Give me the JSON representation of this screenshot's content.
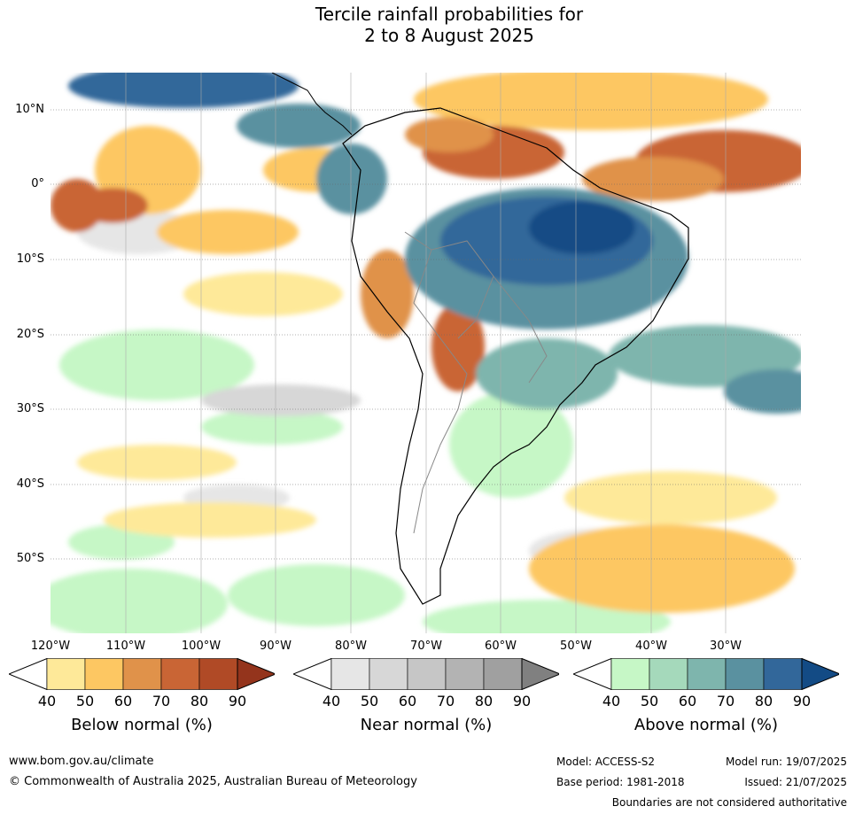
{
  "title_line1": "Tercile rainfall probabilities for",
  "title_line2": "2 to 8 August 2025",
  "lat_labels": [
    "10°N",
    "0°",
    "10°S",
    "20°S",
    "30°S",
    "40°S",
    "50°S"
  ],
  "lon_labels": [
    "120°W",
    "110°W",
    "100°W",
    "90°W",
    "80°W",
    "70°W",
    "60°W",
    "50°W",
    "40°W",
    "30°W"
  ],
  "colorbars": [
    {
      "label": "Below normal (%)",
      "ticks": [
        "40",
        "50",
        "60",
        "70",
        "80",
        "90"
      ],
      "colors": [
        "#ffffff",
        "#fee999",
        "#fdc762",
        "#e0924a",
        "#c96535",
        "#b04a26",
        "#94341c"
      ]
    },
    {
      "label": "Near normal (%)",
      "ticks": [
        "40",
        "50",
        "60",
        "70",
        "80",
        "90"
      ],
      "colors": [
        "#ffffff",
        "#e6e6e6",
        "#d7d7d7",
        "#c6c6c6",
        "#b3b3b3",
        "#a0a0a0",
        "#808080"
      ]
    },
    {
      "label": "Above normal (%)",
      "ticks": [
        "40",
        "50",
        "60",
        "70",
        "80",
        "90"
      ],
      "colors": [
        "#ffffff",
        "#c6f7c6",
        "#a5d9bb",
        "#7eb5ad",
        "#5a91a0",
        "#32679a",
        "#134b85"
      ]
    }
  ],
  "footer": {
    "website": "www.bom.gov.au/climate",
    "copyright": "© Commonwealth of Australia 2025, Australian Bureau of Meteorology",
    "model": "Model: ACCESS-S2",
    "model_run": "Model run: 19/07/2025",
    "base_period": "Base period: 1981-2018",
    "issued": "Issued: 21/07/2025",
    "boundaries": "Boundaries are not considered authoritative"
  }
}
